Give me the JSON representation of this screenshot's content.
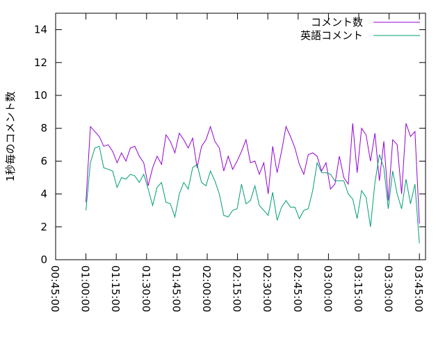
{
  "chart_data": {
    "type": "line",
    "y_label": "1秒毎のコメント数",
    "x": [
      3600,
      3732,
      3864,
      3996,
      4128,
      4260,
      4392,
      4524,
      4656,
      4788,
      4920,
      5052,
      5184,
      5316,
      5448,
      5580,
      5712,
      5844,
      5976,
      6108,
      6240,
      6372,
      6504,
      6636,
      6768,
      6900,
      7032,
      7164,
      7296,
      7428,
      7560,
      7692,
      7824,
      7956,
      8088,
      8220,
      8352,
      8484,
      8616,
      8748,
      8880,
      9012,
      9144,
      9276,
      9408,
      9540,
      9672,
      9804,
      9936,
      10068,
      10200,
      10332,
      10464,
      10596,
      10728,
      10860,
      10992,
      11124,
      11256,
      11388,
      11520,
      11652,
      11784,
      11916,
      12048,
      12180,
      12312,
      12444,
      12576,
      12708,
      12840,
      12972,
      13104,
      13236,
      13368,
      13500
    ],
    "series": [
      {
        "name": "コメント数",
        "color": "#9400d3",
        "values": [
          3.5,
          8.1,
          7.8,
          7.5,
          6.9,
          7.0,
          6.6,
          5.9,
          6.5,
          6.0,
          6.8,
          6.9,
          6.3,
          5.9,
          4.5,
          5.6,
          6.3,
          5.8,
          7.6,
          7.2,
          6.5,
          7.7,
          7.3,
          6.8,
          7.4,
          5.6,
          6.9,
          7.3,
          8.1,
          7.2,
          6.8,
          5.4,
          6.3,
          5.5,
          6.0,
          6.6,
          7.3,
          5.9,
          6.0,
          5.2,
          5.9,
          4.0,
          6.9,
          5.3,
          6.6,
          8.1,
          7.5,
          6.8,
          5.8,
          5.2,
          6.4,
          6.5,
          6.3,
          5.4,
          5.9,
          4.3,
          4.6,
          6.3,
          5.0,
          4.6,
          8.3,
          5.3,
          8.0,
          7.6,
          6.0,
          7.7,
          4.8,
          7.2,
          3.6,
          7.3,
          7.0,
          4.0,
          8.3,
          7.5,
          7.8,
          2.2
        ]
      },
      {
        "name": "英語コメント",
        "color": "#009e73",
        "values": [
          3.0,
          5.9,
          6.8,
          6.9,
          5.6,
          5.5,
          5.4,
          4.4,
          5.0,
          4.9,
          5.2,
          5.1,
          4.7,
          5.2,
          4.3,
          3.3,
          4.4,
          4.7,
          3.5,
          3.4,
          2.6,
          4.0,
          4.7,
          4.3,
          5.6,
          5.8,
          4.7,
          4.5,
          5.4,
          4.8,
          4.0,
          2.7,
          2.6,
          3.0,
          3.1,
          4.6,
          3.4,
          3.6,
          4.5,
          3.3,
          3.0,
          2.7,
          4.1,
          2.4,
          3.2,
          3.6,
          3.2,
          3.2,
          2.5,
          3.0,
          3.1,
          4.2,
          5.9,
          5.3,
          5.3,
          5.2,
          4.8,
          4.8,
          4.8,
          4.0,
          3.7,
          2.5,
          4.2,
          3.8,
          2.0,
          4.7,
          6.4,
          5.6,
          3.1,
          5.4,
          4.0,
          3.1,
          4.9,
          3.4,
          4.6,
          1.0
        ]
      }
    ],
    "xlim": [
      2700,
      13682
    ],
    "xticks": [
      {
        "value": 2700,
        "label": "00:45:00"
      },
      {
        "value": 3600,
        "label": "01:00:00"
      },
      {
        "value": 4500,
        "label": "01:15:00"
      },
      {
        "value": 5400,
        "label": "01:30:00"
      },
      {
        "value": 6300,
        "label": "01:45:00"
      },
      {
        "value": 7200,
        "label": "02:00:00"
      },
      {
        "value": 8100,
        "label": "02:15:00"
      },
      {
        "value": 9000,
        "label": "02:30:00"
      },
      {
        "value": 9900,
        "label": "02:45:00"
      },
      {
        "value": 10800,
        "label": "03:00:00"
      },
      {
        "value": 11700,
        "label": "03:15:00"
      },
      {
        "value": 12600,
        "label": "03:30:00"
      },
      {
        "value": 13500,
        "label": "03:45:00"
      }
    ],
    "ylim": [
      0,
      15
    ],
    "yticks": [
      0,
      2,
      4,
      6,
      8,
      10,
      12,
      14
    ],
    "legend": "top-right"
  }
}
